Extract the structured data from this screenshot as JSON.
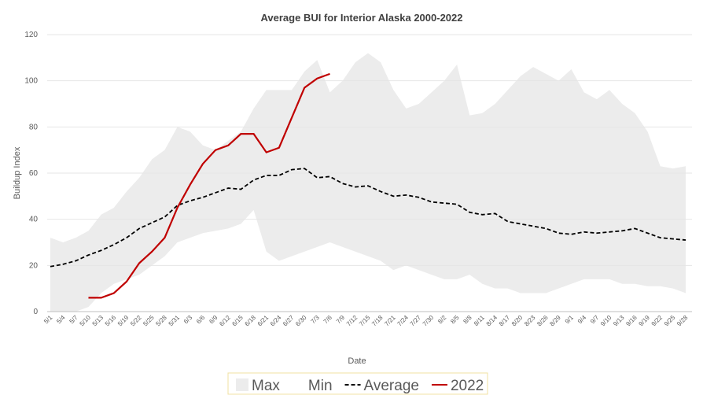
{
  "chart_data": {
    "type": "line",
    "title": "Average BUI for Interior Alaska 2000-2022",
    "x_label": "Date",
    "y_label": "Buildup Index",
    "categories": [
      "5/1",
      "5/4",
      "5/7",
      "5/10",
      "5/13",
      "5/16",
      "5/19",
      "5/22",
      "5/25",
      "5/28",
      "5/31",
      "6/3",
      "6/6",
      "6/9",
      "6/12",
      "6/15",
      "6/18",
      "6/21",
      "6/24",
      "6/27",
      "6/30",
      "7/3",
      "7/6",
      "7/9",
      "7/12",
      "7/15",
      "7/18",
      "7/21",
      "7/24",
      "7/27",
      "7/30",
      "8/2",
      "8/5",
      "8/8",
      "8/11",
      "8/14",
      "8/17",
      "8/20",
      "8/23",
      "8/26",
      "8/29",
      "9/1",
      "9/4",
      "9/7",
      "9/10",
      "9/13",
      "9/16",
      "9/19",
      "9/22",
      "9/25",
      "9/28"
    ],
    "ylim": [
      0,
      120
    ],
    "yticks": [
      0,
      20,
      40,
      60,
      80,
      100,
      120
    ],
    "grid": true,
    "legend": "bottom",
    "series": [
      {
        "name": "Max",
        "color": "#ececec",
        "kind": "area",
        "values": [
          32,
          30,
          32,
          35,
          42,
          45,
          52,
          58,
          66,
          70,
          80,
          78,
          72,
          70,
          74,
          78,
          88,
          96,
          96,
          96,
          104,
          109,
          95,
          100,
          108,
          112,
          108,
          96,
          88,
          90,
          95,
          100,
          107,
          85,
          86,
          90,
          96,
          102,
          106,
          103,
          100,
          105,
          95,
          92,
          96,
          90,
          86,
          78,
          63,
          62,
          63
        ]
      },
      {
        "name": "Min",
        "color": "#ffffff",
        "kind": "area",
        "values": [
          0,
          0,
          0,
          2,
          8,
          12,
          14,
          16,
          20,
          24,
          30,
          32,
          34,
          35,
          36,
          38,
          44,
          26,
          22,
          24,
          26,
          28,
          30,
          28,
          26,
          24,
          22,
          18,
          20,
          18,
          16,
          14,
          14,
          16,
          12,
          10,
          10,
          8,
          8,
          8,
          10,
          12,
          14,
          14,
          14,
          12,
          12,
          11,
          11,
          10,
          8
        ]
      },
      {
        "name": "Average",
        "color": "#000000",
        "kind": "line",
        "dashed": true,
        "values": [
          19.5,
          20.5,
          22,
          24.5,
          26.5,
          29,
          32,
          36,
          38.5,
          41,
          46,
          48,
          49.5,
          51.5,
          53.5,
          53,
          57,
          59,
          59,
          61.5,
          62,
          58,
          58.5,
          55.5,
          54,
          54.5,
          52,
          50,
          50.5,
          49.5,
          47.5,
          47,
          46.5,
          43,
          42,
          42.5,
          39,
          38,
          37,
          36,
          34,
          33.5,
          34.5,
          34,
          34.5,
          35,
          36,
          34,
          32,
          31.5,
          31
        ]
      },
      {
        "name": "2022",
        "color": "#c00000",
        "kind": "line",
        "dashed": false,
        "values": [
          null,
          null,
          null,
          6,
          6,
          8,
          13,
          21,
          26,
          32,
          45,
          55,
          64,
          70,
          72,
          77,
          77,
          69,
          71,
          84,
          97,
          101,
          103,
          null,
          null,
          null,
          null,
          null,
          null,
          null,
          null,
          null,
          null,
          null,
          null,
          null,
          null,
          null,
          null,
          null,
          null,
          null,
          null,
          null,
          null,
          null,
          null,
          null,
          null,
          null,
          null
        ]
      }
    ]
  }
}
